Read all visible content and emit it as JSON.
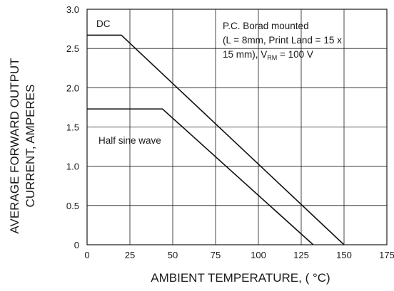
{
  "chart_data": {
    "type": "line",
    "xlabel": "AMBIENT TEMPERATURE, ( °C)",
    "ylabel_line1": "AVERAGE FORWARD OUTPUT",
    "ylabel_line2": "CURRENT, AMPERES",
    "xlim": [
      0,
      175
    ],
    "ylim": [
      0,
      3.0
    ],
    "x_ticks": [
      0,
      25,
      50,
      75,
      100,
      125,
      150,
      175
    ],
    "x_tick_labels": [
      "0",
      "25",
      "50",
      "75",
      "100",
      "125",
      "150",
      "175"
    ],
    "y_ticks": [
      0,
      0.5,
      1.0,
      1.5,
      2.0,
      2.5,
      3.0
    ],
    "y_tick_labels": [
      "0",
      "0.5",
      "1.0",
      "1.5",
      "2.0",
      "2.5",
      "3.0"
    ],
    "grid": true,
    "series": [
      {
        "name": "DC",
        "x": [
          0,
          20,
          150
        ],
        "y": [
          2.67,
          2.67,
          0
        ]
      },
      {
        "name": "Half sine wave",
        "x": [
          0,
          44,
          132
        ],
        "y": [
          1.73,
          1.73,
          0
        ]
      }
    ],
    "annotation": {
      "line1": "P.C. Borad mounted",
      "line2": "(L = 8mm, Print Land = 15 x",
      "line3_prefix": "15 mm), V",
      "line3_sub": "RM",
      "line3_suffix": " = 100 V"
    }
  }
}
